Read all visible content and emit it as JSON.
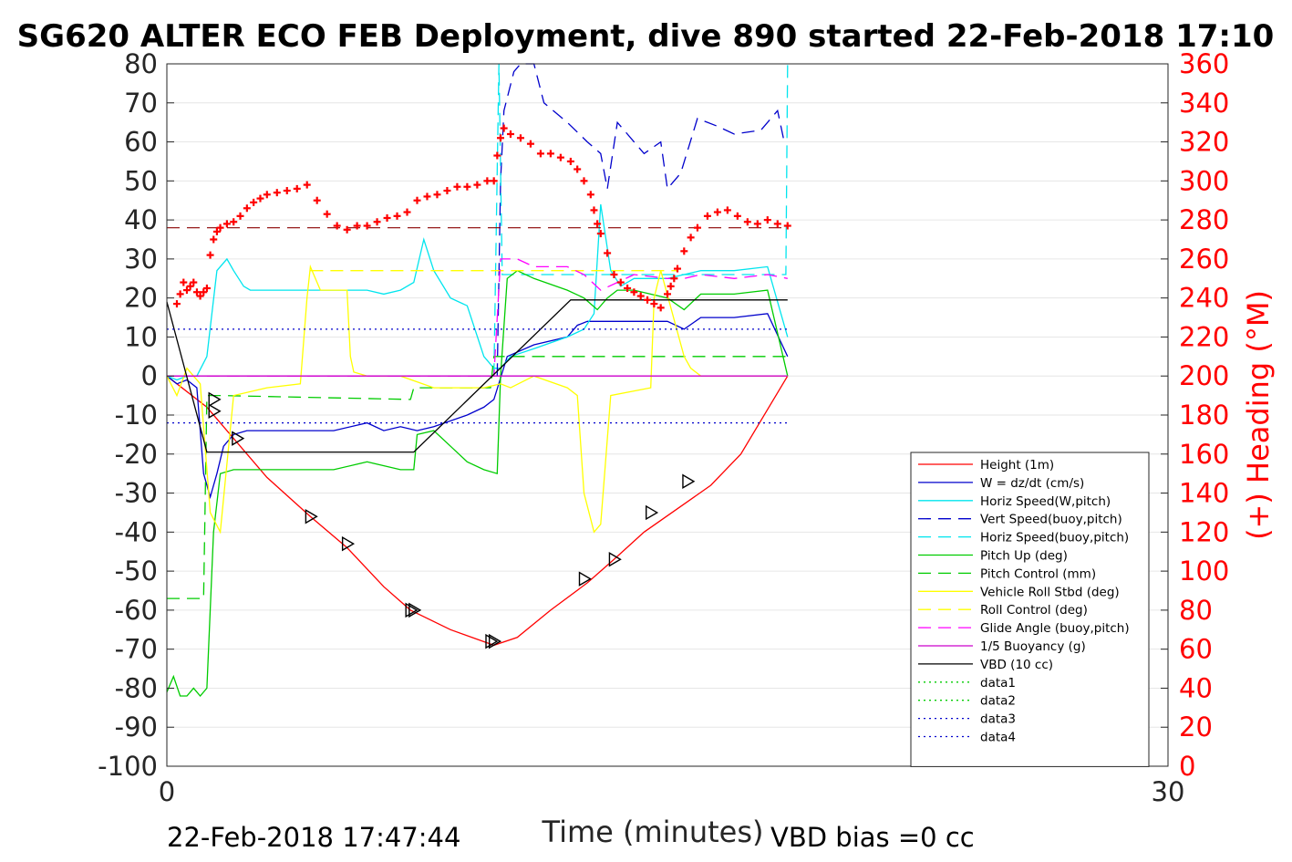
{
  "chart_data": {
    "type": "line",
    "title": "SG620 ALTER ECO FEB Deployment, dive 890 started 22-Feb-2018 17:10",
    "xlabel": "Time (minutes)",
    "ylabel_right": "(+) Heading (°M)",
    "xlim": [
      0,
      30
    ],
    "ylim": [
      -100,
      80
    ],
    "ylim_right": [
      0,
      360
    ],
    "x_ticks": [
      "0",
      "30"
    ],
    "y_ticks": [
      "80",
      "70",
      "60",
      "50",
      "40",
      "30",
      "20",
      "10",
      "0",
      "-10",
      "-20",
      "-30",
      "-40",
      "-50",
      "-60",
      "-70",
      "-80",
      "-90",
      "-100"
    ],
    "y_ticks_right": [
      "360",
      "340",
      "320",
      "300",
      "280",
      "260",
      "240",
      "220",
      "200",
      "180",
      "160",
      "140",
      "120",
      "100",
      "80",
      "60",
      "40",
      "20",
      "0"
    ],
    "grid": "horizontal",
    "legend_position": "lower-right",
    "footer_timestamp": "22-Feb-2018 17:47:44",
    "footer_note": "VBD bias =0 cc",
    "series": [
      {
        "name": "Height (1m)",
        "color": "#ff0000",
        "style": "solid",
        "x": [
          0,
          1.2,
          2,
          3,
          4.3,
          5.4,
          6.5,
          7.3,
          8.5,
          9.8,
          10.5,
          11.5,
          12.6,
          13.4,
          14.3,
          15.3,
          16.3,
          17.2,
          18.6
        ],
        "y": [
          0,
          -8,
          -16,
          -26,
          -36,
          -44,
          -54,
          -60,
          -65,
          -69,
          -67,
          -60,
          -53,
          -47,
          -40,
          -34,
          -28,
          -20,
          0
        ]
      },
      {
        "name": "W = dz/dt (cm/s)",
        "color": "#0000cc",
        "style": "solid",
        "x": [
          0,
          0.3,
          0.6,
          0.9,
          1.1,
          1.3,
          1.5,
          1.7,
          2.0,
          2.4,
          3.0,
          4.0,
          5.0,
          6.0,
          6.5,
          7.0,
          7.5,
          8.0,
          9.0,
          9.5,
          9.8,
          10.2,
          11.0,
          12.0,
          12.3,
          12.6,
          13.0,
          14.0,
          15.0,
          15.5,
          16.0,
          17.0,
          18.0,
          18.6
        ],
        "y": [
          0,
          -2,
          -1,
          -3,
          -25,
          -31,
          -25,
          -18,
          -15,
          -14,
          -14,
          -14,
          -14,
          -12,
          -14,
          -13,
          -14,
          -13,
          -10,
          -8,
          -6,
          5,
          8,
          10,
          13,
          14,
          14,
          14,
          14,
          12,
          15,
          15,
          16,
          5
        ]
      },
      {
        "name": "Horiz Speed(W,pitch)",
        "color": "#00e5ee",
        "style": "solid",
        "x": [
          0,
          0.3,
          0.6,
          0.9,
          1.2,
          1.5,
          1.8,
          2.0,
          2.3,
          2.5,
          3,
          4,
          5,
          6,
          6.5,
          7,
          7.4,
          7.7,
          8,
          8.5,
          9,
          9.5,
          9.8,
          10,
          10.3,
          11,
          12,
          12.5,
          12.8,
          13,
          13.3,
          13.6,
          14,
          15,
          16,
          17,
          18,
          18.6
        ],
        "y": [
          0,
          -1,
          0,
          0,
          5,
          27,
          30,
          27,
          23,
          22,
          22,
          22,
          22,
          22,
          21,
          22,
          24,
          35,
          27,
          20,
          18,
          5,
          2,
          2,
          5,
          7,
          10,
          12,
          16,
          44,
          27,
          23,
          25,
          25,
          27,
          27,
          28,
          10
        ]
      },
      {
        "name": "Vert Speed(buoy,pitch)",
        "color": "#0000cc",
        "style": "dashed",
        "x": [
          9.9,
          10.0,
          10.1,
          10.4,
          10.6,
          11,
          11.3,
          12,
          12.6,
          13.0,
          13.2,
          13.5,
          13.8,
          14.3,
          14.8,
          15.0,
          15.4,
          15.9,
          16.5,
          17.0,
          17.8,
          18.3,
          18.5
        ],
        "y": [
          0,
          50,
          68,
          78,
          82,
          80,
          70,
          65,
          60,
          57,
          48,
          65,
          62,
          57,
          60,
          48,
          52,
          66,
          64,
          62,
          63,
          68,
          60
        ]
      },
      {
        "name": "Horiz Speed(buoy,pitch)",
        "color": "#00e5ee",
        "style": "dashed",
        "x": [
          9.8,
          9.95,
          10.05,
          18.55,
          18.6
        ],
        "y": [
          0,
          80,
          26,
          26,
          80
        ]
      },
      {
        "name": "Pitch Up (deg)",
        "color": "#00cc00",
        "style": "solid",
        "x": [
          0,
          0.2,
          0.4,
          0.6,
          0.8,
          1.0,
          1.2,
          1.4,
          1.6,
          2,
          3,
          4,
          5,
          6,
          7,
          7.4,
          7.5,
          8,
          8.5,
          9,
          9.5,
          9.9,
          10.0,
          10.2,
          10.5,
          11,
          12,
          12.5,
          12.9,
          13.2,
          13.5,
          14,
          15,
          15.5,
          16,
          17,
          18,
          18.6
        ],
        "y": [
          -81,
          -77,
          -82,
          -82,
          -80,
          -82,
          -80,
          -40,
          -25,
          -24,
          -24,
          -24,
          -24,
          -22,
          -24,
          -24,
          -15,
          -14,
          -18,
          -22,
          -24,
          -25,
          0,
          25,
          27,
          25,
          22,
          20,
          17,
          20,
          22,
          22,
          20,
          17,
          21,
          21,
          22,
          0
        ]
      },
      {
        "name": "Pitch Control (mm)",
        "color": "#00cc00",
        "style": "dashed",
        "x": [
          0,
          1.1,
          1.2,
          1.6,
          7.3,
          7.4,
          9.7,
          9.8,
          18.6
        ],
        "y": [
          -57,
          -57,
          -5,
          -5,
          -6,
          -3,
          -3,
          5,
          5
        ]
      },
      {
        "name": "Vehicle Roll Stbd (deg)",
        "color": "#ffff00",
        "style": "solid",
        "x": [
          0,
          0.3,
          0.6,
          1.0,
          1.3,
          1.6,
          2,
          3,
          4,
          4.2,
          4.3,
          4.6,
          5.4,
          5.5,
          5.6,
          6,
          7,
          8,
          9,
          9.5,
          10.0,
          10.3,
          11,
          12,
          12.3,
          12.5,
          12.8,
          13.0,
          13.3,
          14.5,
          14.6,
          14.8,
          15.5,
          15.7,
          16,
          17,
          18,
          18.6
        ],
        "y": [
          0,
          -5,
          2,
          -2,
          -35,
          -40,
          -5,
          -3,
          -2,
          20,
          28,
          22,
          22,
          5,
          1,
          0,
          0,
          -3,
          -3,
          -3,
          -2,
          -3,
          0,
          -3,
          -5,
          -30,
          -40,
          -38,
          -5,
          -3,
          20,
          27,
          5,
          2,
          0,
          0,
          0,
          0
        ]
      },
      {
        "name": "Roll Control (deg)",
        "color": "#ffff00",
        "style": "dashed",
        "x": [
          4.3,
          5.0,
          14.7,
          15.3
        ],
        "y": [
          27,
          27,
          27,
          27
        ]
      },
      {
        "name": "Glide Angle (buoy,pitch)",
        "color": "#ff00ff",
        "style": "dashed",
        "x": [
          0,
          9.8,
          10.0,
          10.5,
          11,
          12,
          12.5,
          13.0,
          13.5,
          14,
          15,
          15.5,
          16,
          17,
          18,
          18.6
        ],
        "y": [
          0,
          0,
          30,
          30,
          28,
          28,
          26,
          22,
          24,
          26,
          25,
          25,
          26,
          25,
          26,
          25
        ]
      },
      {
        "name": "1/5 Buoyancy (g)",
        "color": "#cc00cc",
        "style": "solid",
        "x": [
          0,
          9.8,
          18.6
        ],
        "y": [
          0,
          0,
          0
        ]
      },
      {
        "name": "VBD (10 cc)",
        "color": "#000000",
        "style": "solid",
        "x": [
          0,
          1.2,
          7.4,
          12.1,
          18.6
        ],
        "y": [
          19,
          -19.5,
          -19.5,
          19.5,
          19.5
        ]
      },
      {
        "name": "data1",
        "color": "#00cc00",
        "style": "dotted",
        "x": [],
        "y": []
      },
      {
        "name": "data2",
        "color": "#00cc00",
        "style": "dotted",
        "x": [],
        "y": []
      },
      {
        "name": "data3",
        "color": "#0000cc",
        "style": "dotted",
        "x": [
          0,
          18.6
        ],
        "y": [
          12,
          12
        ]
      },
      {
        "name": "data4",
        "color": "#0000cc",
        "style": "dotted",
        "x": [
          0,
          18.6
        ],
        "y": [
          -12,
          -12
        ]
      }
    ],
    "heading_reference_dashed": {
      "color": "#8b0000",
      "y_right": 276
    },
    "heading_points": {
      "color": "#ff0000",
      "marker": "+",
      "x": [
        0.3,
        0.4,
        0.5,
        0.6,
        0.7,
        0.8,
        0.9,
        1.0,
        1.1,
        1.2,
        1.3,
        1.4,
        1.5,
        1.6,
        1.8,
        2.0,
        2.2,
        2.4,
        2.6,
        2.8,
        3.0,
        3.3,
        3.6,
        3.9,
        4.2,
        4.5,
        4.8,
        5.1,
        5.4,
        5.7,
        6.0,
        6.3,
        6.6,
        6.9,
        7.2,
        7.5,
        7.8,
        8.1,
        8.4,
        8.7,
        9.0,
        9.3,
        9.6,
        9.8,
        9.9,
        10.0,
        10.1,
        10.3,
        10.6,
        10.9,
        11.2,
        11.5,
        11.8,
        12.1,
        12.3,
        12.5,
        12.7,
        12.8,
        12.9,
        13.0,
        13.2,
        13.4,
        13.6,
        13.8,
        14.0,
        14.2,
        14.4,
        14.6,
        14.8,
        15.0,
        15.1,
        15.2,
        15.3,
        15.5,
        15.7,
        15.9,
        16.2,
        16.5,
        16.8,
        17.1,
        17.4,
        17.7,
        18.0,
        18.3,
        18.6
      ],
      "y_right": [
        237,
        242,
        248,
        244,
        246,
        248,
        243,
        241,
        243,
        245,
        262,
        270,
        274,
        276,
        278,
        279,
        282,
        286,
        289,
        291,
        293,
        294,
        295,
        296,
        298,
        290,
        283,
        277,
        275,
        277,
        277,
        279,
        281,
        282,
        284,
        290,
        292,
        293,
        295,
        297,
        297,
        298,
        300,
        300,
        313,
        322,
        327,
        324,
        322,
        319,
        314,
        314,
        312,
        310,
        306,
        300,
        293,
        285,
        278,
        273,
        263,
        252,
        248,
        245,
        243,
        241,
        239,
        237,
        235,
        242,
        246,
        250,
        255,
        264,
        271,
        276,
        282,
        284,
        285,
        282,
        279,
        278,
        280,
        278,
        277
      ]
    },
    "triangle_markers": {
      "x": [
        1.4,
        1.4,
        2.1,
        4.3,
        5.4,
        7.3,
        7.4,
        9.7,
        9.8,
        12.5,
        13.4,
        14.5,
        15.6
      ],
      "y": [
        -6,
        -9,
        -16,
        -36,
        -43,
        -60,
        -60,
        -68,
        -68,
        -52,
        -47,
        -35,
        -27
      ]
    }
  }
}
